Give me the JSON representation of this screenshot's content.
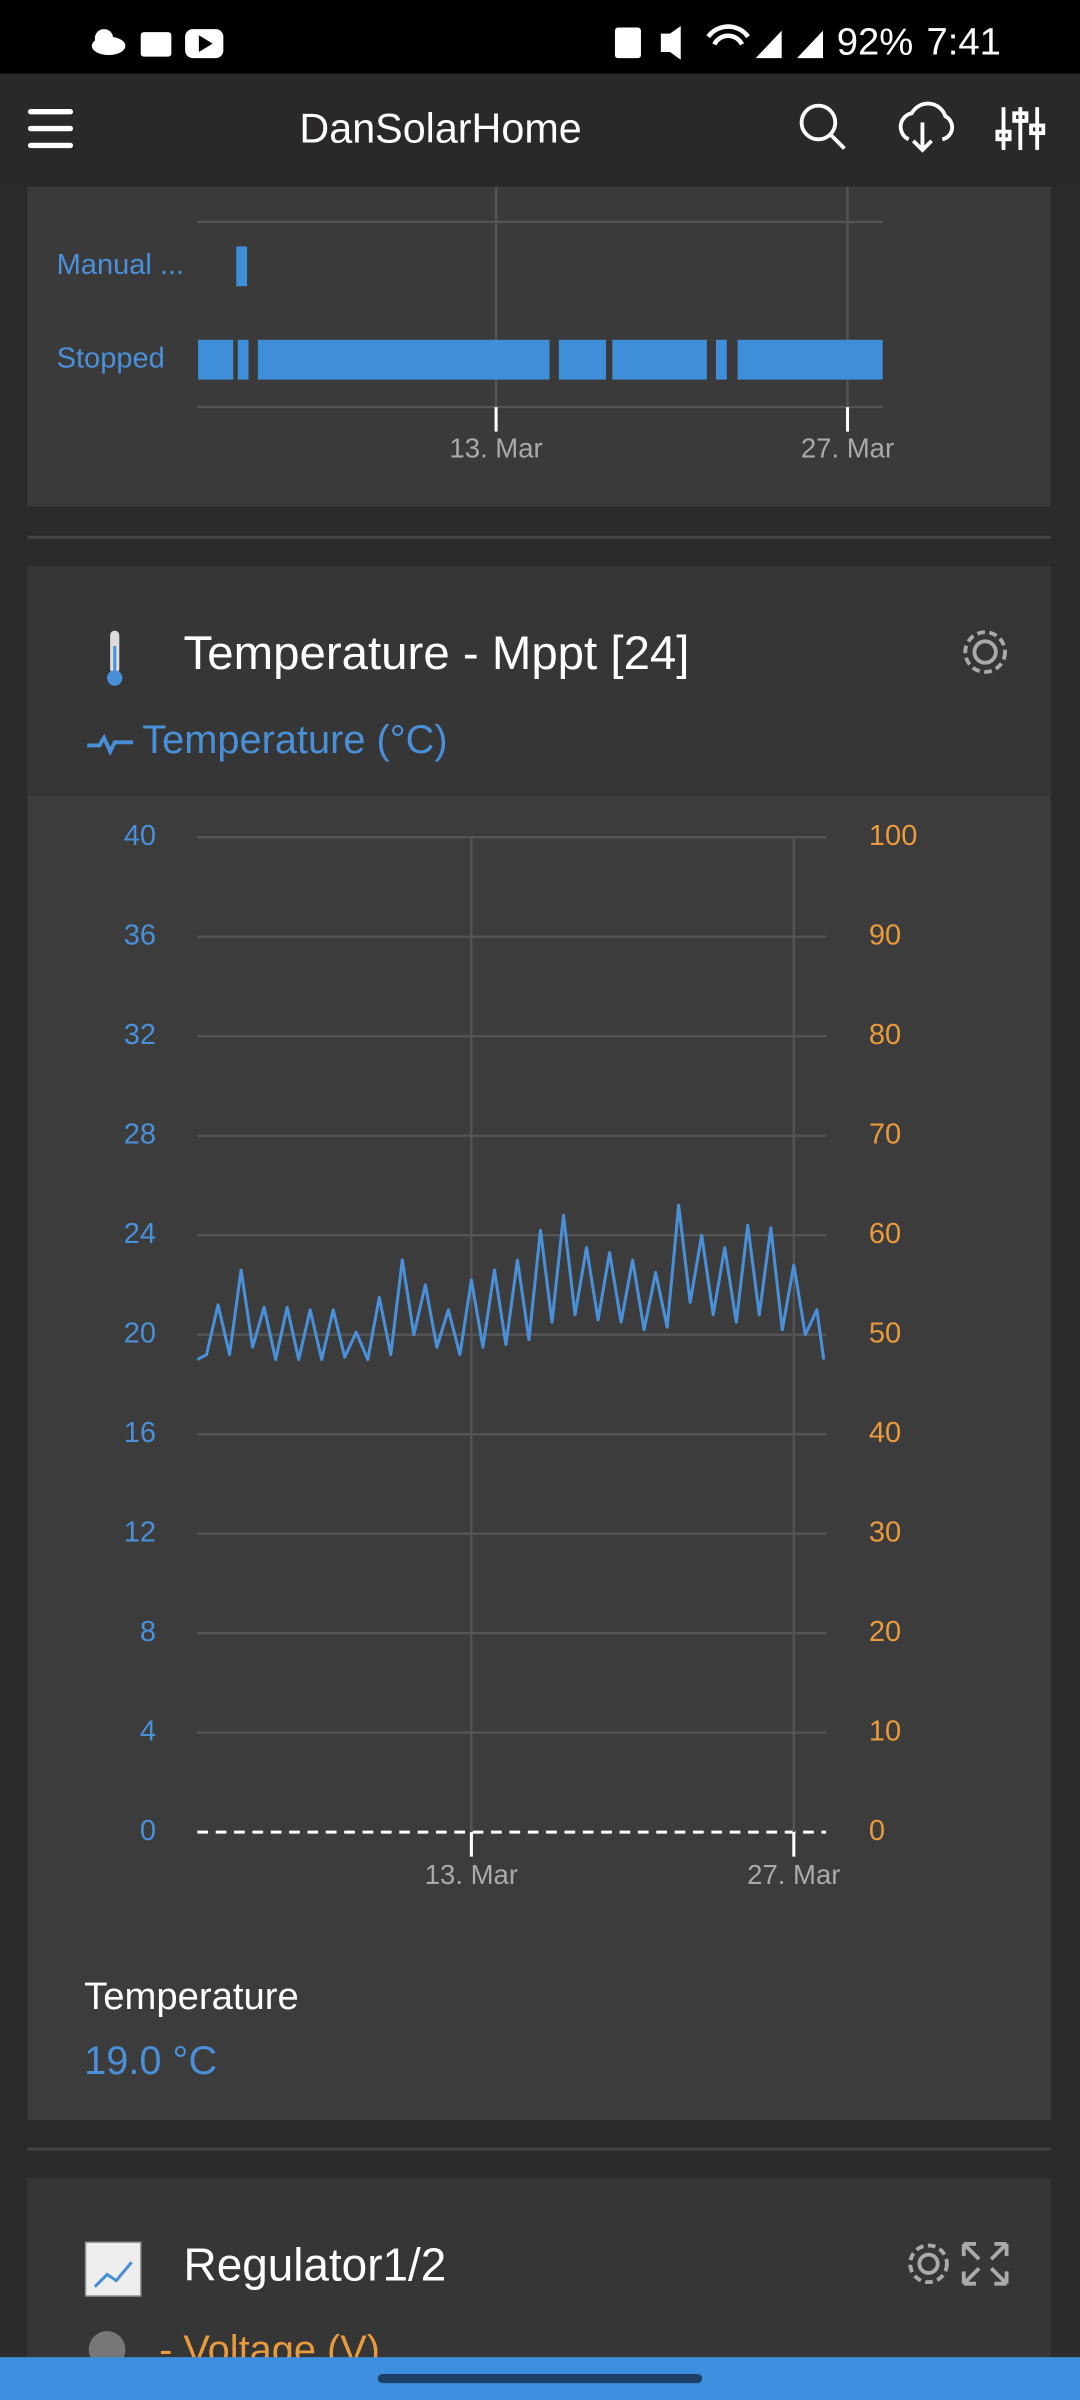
{
  "status_bar": {
    "battery": "92%",
    "time": "7:41"
  },
  "app_bar": {
    "title": "DanSolarHome"
  },
  "chart_data": [
    {
      "type": "timeline",
      "categories": [
        "Manual ...",
        "Stopped"
      ],
      "spans": [
        [
          [
            2.65,
            3.08
          ]
        ],
        [
          [
            1.13,
            2.53
          ],
          [
            2.71,
            3.14
          ],
          [
            3.51,
            15.13
          ],
          [
            15.5,
            17.38
          ],
          [
            17.63,
            21.4
          ],
          [
            21.76,
            22.19
          ],
          [
            22.62,
            28.4
          ]
        ]
      ],
      "color": "#3f8ed8",
      "xlim": [
        1.1,
        28.4
      ],
      "xticks": [
        {
          "value": 13,
          "label": "13. Mar"
        },
        {
          "value": 27,
          "label": "27. Mar"
        }
      ],
      "grid": true
    },
    {
      "type": "line",
      "title": "Temperature - Mppt [24]",
      "x": [
        1.1,
        1.5,
        2.0,
        2.5,
        3.0,
        3.5,
        4.0,
        4.5,
        5.0,
        5.5,
        6.0,
        6.5,
        7.0,
        7.5,
        8.0,
        8.5,
        9.0,
        9.5,
        10.0,
        10.5,
        11.0,
        11.5,
        12.0,
        12.5,
        13.0,
        13.5,
        14.0,
        14.5,
        15.0,
        15.5,
        16.0,
        16.5,
        17.0,
        17.5,
        18.0,
        18.5,
        19.0,
        19.5,
        20.0,
        20.5,
        21.0,
        21.5,
        22.0,
        22.5,
        23.0,
        23.5,
        24.0,
        24.5,
        25.0,
        25.5,
        26.0,
        26.5,
        27.0,
        27.5,
        28.0,
        28.3
      ],
      "series": [
        {
          "name": "Temperature (°C)",
          "color": "#4a90d9",
          "values": [
            19,
            19.2,
            21.2,
            19.2,
            22.6,
            19.5,
            21.1,
            19,
            21.1,
            19,
            21,
            19,
            21,
            19.1,
            20.1,
            19,
            21.5,
            19.2,
            23,
            20,
            22,
            19.5,
            21,
            19.2,
            22.2,
            19.5,
            22.6,
            19.6,
            23,
            19.8,
            24.2,
            20.5,
            24.8,
            20.8,
            23.5,
            20.6,
            23.3,
            20.5,
            23,
            20.2,
            22.5,
            20.3,
            25.2,
            21.3,
            24,
            20.8,
            23.5,
            20.5,
            24.4,
            20.8,
            24.3,
            20.2,
            22.8,
            20,
            21,
            19
          ]
        }
      ],
      "xlim": [
        1.1,
        28.4
      ],
      "xticks": [
        {
          "value": 13,
          "label": "13. Mar"
        },
        {
          "value": 27,
          "label": "27. Mar"
        }
      ],
      "ylim": [
        0,
        40
      ],
      "yticks": [
        0,
        4,
        8,
        12,
        16,
        20,
        24,
        28,
        32,
        36,
        40
      ],
      "y2lim": [
        0,
        100
      ],
      "y2ticks": [
        0,
        10,
        20,
        30,
        40,
        50,
        60,
        70,
        80,
        90,
        100
      ],
      "grid": true
    }
  ],
  "temperature_card": {
    "reading_label": "Temperature",
    "reading_value": "19.0 °C"
  },
  "regulator_card": {
    "title": "Regulator1/2",
    "legend": "- Voltage (V)"
  }
}
